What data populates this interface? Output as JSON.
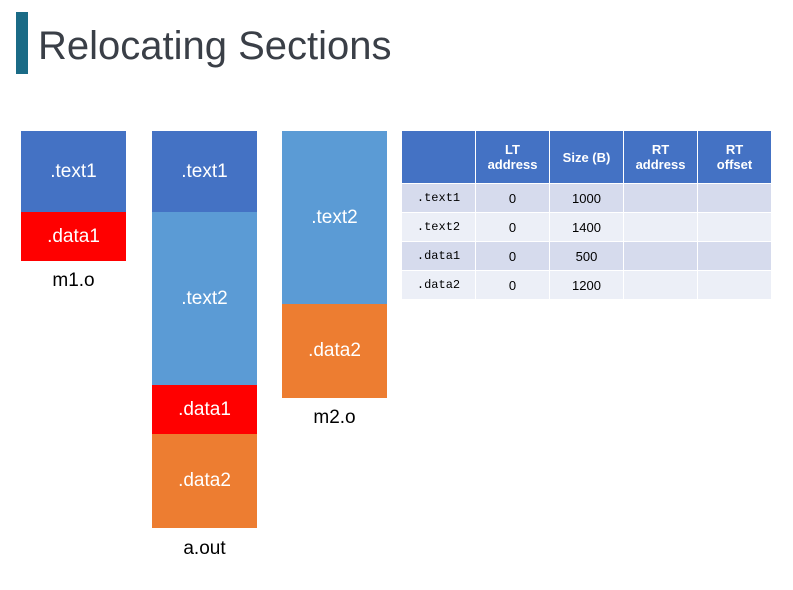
{
  "title": "Relocating Sections",
  "m1": {
    "caption": "m1.o",
    "text1": ".text1",
    "data1": ".data1"
  },
  "aout": {
    "caption": "a.out",
    "text1": ".text1",
    "text2": ".text2",
    "data1": ".data1",
    "data2": ".data2"
  },
  "m2": {
    "caption": "m2.o",
    "text2": ".text2",
    "data2": ".data2"
  },
  "table": {
    "headers": [
      "",
      "LT\naddress",
      "Size (B)",
      "RT\naddress",
      "RT\noffset"
    ],
    "rows": [
      {
        "name": ".text1",
        "lt": "0",
        "size": "1000",
        "rt_address": "",
        "rt_offset": ""
      },
      {
        "name": ".text2",
        "lt": "0",
        "size": "1400",
        "rt_address": "",
        "rt_offset": ""
      },
      {
        "name": ".data1",
        "lt": "0",
        "size": "500",
        "rt_address": "",
        "rt_offset": ""
      },
      {
        "name": ".data2",
        "lt": "0",
        "size": "1200",
        "rt_address": "",
        "rt_offset": ""
      }
    ]
  },
  "colors": {
    "text": "#4472c4",
    "text2": "#5b9bd5",
    "data1": "#ff0000",
    "data2": "#ed7d31",
    "title_bar": "#1a6b86"
  }
}
